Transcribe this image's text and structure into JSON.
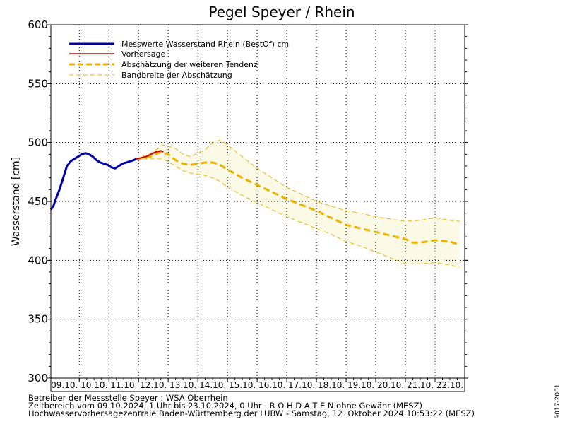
{
  "chart_data": {
    "type": "line",
    "title": "Pegel Speyer / Rhein",
    "ylabel": "Wasserstand [cm]",
    "ylim": [
      300,
      600
    ],
    "yticks": [
      300,
      350,
      400,
      450,
      500,
      550,
      600
    ],
    "xlim": [
      "2024-10-09T01:00",
      "2024-10-23T00:00"
    ],
    "xtick_labels": [
      "09.10.",
      "10.10.",
      "11.10.",
      "12.10.",
      "13.10.",
      "14.10.",
      "15.10.",
      "16.10.",
      "17.10.",
      "18.10.",
      "19.10.",
      "20.10.",
      "21.10.",
      "22.10."
    ],
    "grid": true,
    "legend": {
      "placement": "top-left"
    },
    "series": [
      {
        "name": "Messwerte Wasserstand Rhein (BestOf)   cm",
        "color": "#0000aa",
        "style": "solid-thick",
        "points": [
          [
            "2024-10-09T01:00",
            443
          ],
          [
            "2024-10-09T03:00",
            446
          ],
          [
            "2024-10-09T05:00",
            452
          ],
          [
            "2024-10-09T08:00",
            460
          ],
          [
            "2024-10-09T11:00",
            470
          ],
          [
            "2024-10-09T14:00",
            480
          ],
          [
            "2024-10-09T17:00",
            484
          ],
          [
            "2024-10-09T20:00",
            486
          ],
          [
            "2024-10-09T23:00",
            488
          ],
          [
            "2024-10-10T02:00",
            490
          ],
          [
            "2024-10-10T05:00",
            491
          ],
          [
            "2024-10-10T08:00",
            490
          ],
          [
            "2024-10-10T11:00",
            488
          ],
          [
            "2024-10-10T14:00",
            485
          ],
          [
            "2024-10-10T17:00",
            483
          ],
          [
            "2024-10-10T20:00",
            482
          ],
          [
            "2024-10-10T23:00",
            481
          ],
          [
            "2024-10-11T02:00",
            479
          ],
          [
            "2024-10-11T05:00",
            478
          ],
          [
            "2024-10-11T08:00",
            480
          ],
          [
            "2024-10-11T11:00",
            482
          ],
          [
            "2024-10-11T14:00",
            483
          ],
          [
            "2024-10-11T17:00",
            484
          ],
          [
            "2024-10-11T20:00",
            485
          ],
          [
            "2024-10-11T22:00",
            486
          ]
        ]
      },
      {
        "name": "Vorhersage",
        "color": "#cc0000",
        "style": "solid",
        "points": [
          [
            "2024-10-11T22:00",
            486
          ],
          [
            "2024-10-12T02:00",
            487
          ],
          [
            "2024-10-12T06:00",
            488
          ],
          [
            "2024-10-12T10:00",
            490
          ],
          [
            "2024-10-12T14:00",
            492
          ],
          [
            "2024-10-12T18:00",
            493
          ],
          [
            "2024-10-12T20:00",
            492
          ]
        ]
      },
      {
        "name": "Abschätzung der weiteren Tendenz",
        "color": "#f0b000",
        "style": "dashed-thick",
        "points": [
          [
            "2024-10-11T22:00",
            486
          ],
          [
            "2024-10-12T06:00",
            487
          ],
          [
            "2024-10-12T12:00",
            489
          ],
          [
            "2024-10-12T18:00",
            492
          ],
          [
            "2024-10-13T00:00",
            490
          ],
          [
            "2024-10-13T06:00",
            485
          ],
          [
            "2024-10-13T12:00",
            482
          ],
          [
            "2024-10-13T18:00",
            481
          ],
          [
            "2024-10-14T00:00",
            482
          ],
          [
            "2024-10-14T06:00",
            483
          ],
          [
            "2024-10-14T12:00",
            483
          ],
          [
            "2024-10-14T18:00",
            481
          ],
          [
            "2024-10-15T00:00",
            477
          ],
          [
            "2024-10-15T12:00",
            470
          ],
          [
            "2024-10-16T00:00",
            464
          ],
          [
            "2024-10-16T12:00",
            458
          ],
          [
            "2024-10-17T00:00",
            452
          ],
          [
            "2024-10-17T12:00",
            447
          ],
          [
            "2024-10-18T00:00",
            442
          ],
          [
            "2024-10-18T12:00",
            436
          ],
          [
            "2024-10-19T00:00",
            430
          ],
          [
            "2024-10-19T12:00",
            427
          ],
          [
            "2024-10-20T00:00",
            424
          ],
          [
            "2024-10-20T12:00",
            421
          ],
          [
            "2024-10-21T00:00",
            418
          ],
          [
            "2024-10-21T06:00",
            415
          ],
          [
            "2024-10-21T12:00",
            415
          ],
          [
            "2024-10-22T00:00",
            417
          ],
          [
            "2024-10-22T12:00",
            416
          ],
          [
            "2024-10-22T20:00",
            413
          ]
        ]
      },
      {
        "name": "Bandbreite der Abschätzung",
        "color": "#f0b000",
        "fill": "#fafae6",
        "style": "dashed-thin",
        "upper": [
          [
            "2024-10-11T22:00",
            486
          ],
          [
            "2024-10-12T12:00",
            492
          ],
          [
            "2024-10-12T20:00",
            498
          ],
          [
            "2024-10-13T06:00",
            495
          ],
          [
            "2024-10-13T12:00",
            490
          ],
          [
            "2024-10-13T18:00",
            488
          ],
          [
            "2024-10-14T06:00",
            494
          ],
          [
            "2024-10-14T12:00",
            500
          ],
          [
            "2024-10-14T18:00",
            502
          ],
          [
            "2024-10-15T00:00",
            498
          ],
          [
            "2024-10-15T12:00",
            488
          ],
          [
            "2024-10-16T00:00",
            478
          ],
          [
            "2024-10-16T12:00",
            470
          ],
          [
            "2024-10-17T00:00",
            462
          ],
          [
            "2024-10-17T12:00",
            456
          ],
          [
            "2024-10-18T00:00",
            450
          ],
          [
            "2024-10-18T12:00",
            446
          ],
          [
            "2024-10-19T00:00",
            442
          ],
          [
            "2024-10-19T12:00",
            440
          ],
          [
            "2024-10-20T00:00",
            437
          ],
          [
            "2024-10-20T12:00",
            435
          ],
          [
            "2024-10-21T00:00",
            433
          ],
          [
            "2024-10-21T12:00",
            434
          ],
          [
            "2024-10-22T00:00",
            436
          ],
          [
            "2024-10-22T12:00",
            434
          ],
          [
            "2024-10-22T20:00",
            433
          ]
        ],
        "lower": [
          [
            "2024-10-11T22:00",
            486
          ],
          [
            "2024-10-12T12:00",
            486
          ],
          [
            "2024-10-12T20:00",
            486
          ],
          [
            "2024-10-13T06:00",
            480
          ],
          [
            "2024-10-13T12:00",
            476
          ],
          [
            "2024-10-13T18:00",
            474
          ],
          [
            "2024-10-14T06:00",
            472
          ],
          [
            "2024-10-14T12:00",
            470
          ],
          [
            "2024-10-14T18:00",
            467
          ],
          [
            "2024-10-15T00:00",
            462
          ],
          [
            "2024-10-15T12:00",
            455
          ],
          [
            "2024-10-16T00:00",
            449
          ],
          [
            "2024-10-16T12:00",
            443
          ],
          [
            "2024-10-17T00:00",
            437
          ],
          [
            "2024-10-17T12:00",
            432
          ],
          [
            "2024-10-18T00:00",
            427
          ],
          [
            "2024-10-18T12:00",
            422
          ],
          [
            "2024-10-19T00:00",
            416
          ],
          [
            "2024-10-19T12:00",
            412
          ],
          [
            "2024-10-20T00:00",
            407
          ],
          [
            "2024-10-20T12:00",
            402
          ],
          [
            "2024-10-21T00:00",
            397
          ],
          [
            "2024-10-21T12:00",
            397
          ],
          [
            "2024-10-22T00:00",
            398
          ],
          [
            "2024-10-22T12:00",
            396
          ],
          [
            "2024-10-22T20:00",
            394
          ]
        ]
      }
    ]
  },
  "footer": {
    "line1": "Betreiber der Messstelle Speyer : WSA Oberrhein",
    "line2": "Zeitbereich vom 09.10.2024, 1 Uhr bis 23.10.2024, 0 Uhr   R O H D A T E N ohne Gewähr (MESZ)",
    "line3": "Hochwasservorhersagezentrale Baden-Württemberg der LUBW - Samstag, 12. Oktober 2024 10:53:22 (MESZ)"
  },
  "side_code": "9017-2001"
}
